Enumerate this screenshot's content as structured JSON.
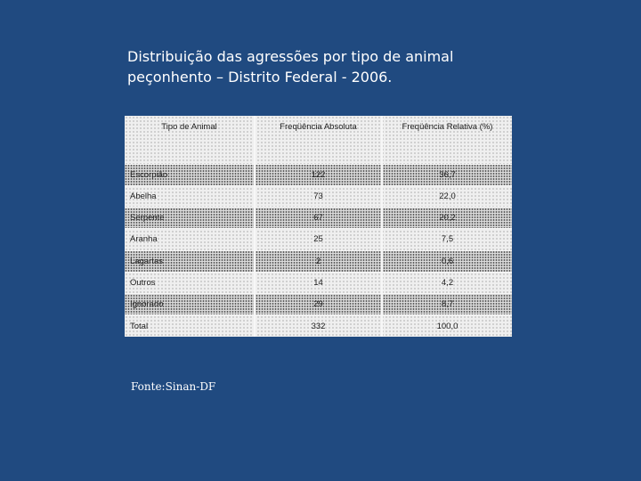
{
  "title": {
    "line1": "Distribuição das agressões por tipo de animal",
    "line2": "peçonhento – Distrito Federal - 2006."
  },
  "table": {
    "headers": [
      "Tipo de Animal",
      "Freqüência Absoluta",
      "Freqüência Relativa (%)"
    ],
    "rows": [
      {
        "animal": "Escorpião",
        "abs": "122",
        "rel": "36,7"
      },
      {
        "animal": "Abelha",
        "abs": "73",
        "rel": "22,0"
      },
      {
        "animal": "Serpente",
        "abs": "67",
        "rel": "20,2"
      },
      {
        "animal": "Aranha",
        "abs": "25",
        "rel": "7,5"
      },
      {
        "animal": "Lagartas",
        "abs": "2",
        "rel": "0,6"
      },
      {
        "animal": "Outros",
        "abs": "14",
        "rel": "4,2"
      },
      {
        "animal": "Ignorado",
        "abs": "29",
        "rel": "8,7"
      },
      {
        "animal": "Total",
        "abs": "332",
        "rel": "100,0"
      }
    ]
  },
  "source": "Fonte:Sinan-DF",
  "colors": {
    "background": "#204a80",
    "title_text": "#ffffff"
  }
}
